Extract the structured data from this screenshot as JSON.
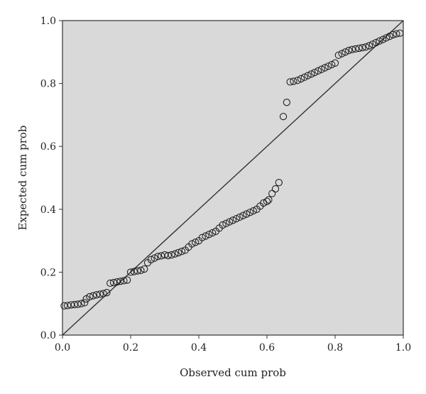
{
  "chart_data": {
    "type": "scatter",
    "title": "",
    "xlabel": "Observed cum prob",
    "ylabel": "Expected cum prob",
    "xlim": [
      0,
      1
    ],
    "ylim": [
      0,
      1
    ],
    "xticks": [
      "0.0",
      "0.2",
      "0.4",
      "0.6",
      "0.8",
      "1.0"
    ],
    "yticks": [
      "0.0",
      "0.2",
      "0.4",
      "0.6",
      "0.8",
      "1.0"
    ],
    "grid": false,
    "legend": "none",
    "plot_background": "#d9d9d9",
    "marker": "open-circle",
    "reference_line": {
      "x": [
        0,
        1
      ],
      "y": [
        0,
        1
      ]
    },
    "series": [
      {
        "values": [
          [
            0.005,
            0.093
          ],
          [
            0.015,
            0.094
          ],
          [
            0.025,
            0.096
          ],
          [
            0.035,
            0.097
          ],
          [
            0.045,
            0.098
          ],
          [
            0.055,
            0.1
          ],
          [
            0.065,
            0.103
          ],
          [
            0.07,
            0.115
          ],
          [
            0.08,
            0.122
          ],
          [
            0.09,
            0.125
          ],
          [
            0.1,
            0.128
          ],
          [
            0.11,
            0.13
          ],
          [
            0.12,
            0.132
          ],
          [
            0.13,
            0.135
          ],
          [
            0.14,
            0.165
          ],
          [
            0.15,
            0.167
          ],
          [
            0.16,
            0.169
          ],
          [
            0.17,
            0.171
          ],
          [
            0.18,
            0.173
          ],
          [
            0.19,
            0.175
          ],
          [
            0.2,
            0.2
          ],
          [
            0.21,
            0.202
          ],
          [
            0.22,
            0.204
          ],
          [
            0.23,
            0.206
          ],
          [
            0.24,
            0.21
          ],
          [
            0.25,
            0.23
          ],
          [
            0.26,
            0.24
          ],
          [
            0.27,
            0.245
          ],
          [
            0.28,
            0.25
          ],
          [
            0.29,
            0.252
          ],
          [
            0.3,
            0.255
          ],
          [
            0.31,
            0.253
          ],
          [
            0.32,
            0.255
          ],
          [
            0.33,
            0.258
          ],
          [
            0.34,
            0.262
          ],
          [
            0.35,
            0.266
          ],
          [
            0.36,
            0.27
          ],
          [
            0.37,
            0.28
          ],
          [
            0.38,
            0.29
          ],
          [
            0.39,
            0.295
          ],
          [
            0.4,
            0.3
          ],
          [
            0.41,
            0.31
          ],
          [
            0.42,
            0.315
          ],
          [
            0.43,
            0.32
          ],
          [
            0.44,
            0.325
          ],
          [
            0.45,
            0.33
          ],
          [
            0.46,
            0.34
          ],
          [
            0.47,
            0.35
          ],
          [
            0.48,
            0.355
          ],
          [
            0.49,
            0.36
          ],
          [
            0.5,
            0.365
          ],
          [
            0.51,
            0.37
          ],
          [
            0.52,
            0.375
          ],
          [
            0.53,
            0.38
          ],
          [
            0.54,
            0.385
          ],
          [
            0.55,
            0.39
          ],
          [
            0.56,
            0.395
          ],
          [
            0.57,
            0.4
          ],
          [
            0.58,
            0.41
          ],
          [
            0.59,
            0.42
          ],
          [
            0.6,
            0.425
          ],
          [
            0.605,
            0.43
          ],
          [
            0.615,
            0.45
          ],
          [
            0.625,
            0.465
          ],
          [
            0.635,
            0.485
          ],
          [
            0.648,
            0.695
          ],
          [
            0.658,
            0.74
          ],
          [
            0.668,
            0.805
          ],
          [
            0.678,
            0.807
          ],
          [
            0.69,
            0.81
          ],
          [
            0.7,
            0.815
          ],
          [
            0.71,
            0.82
          ],
          [
            0.72,
            0.825
          ],
          [
            0.73,
            0.83
          ],
          [
            0.74,
            0.835
          ],
          [
            0.75,
            0.84
          ],
          [
            0.76,
            0.845
          ],
          [
            0.77,
            0.85
          ],
          [
            0.78,
            0.855
          ],
          [
            0.79,
            0.86
          ],
          [
            0.8,
            0.865
          ],
          [
            0.81,
            0.89
          ],
          [
            0.82,
            0.895
          ],
          [
            0.83,
            0.9
          ],
          [
            0.84,
            0.905
          ],
          [
            0.85,
            0.908
          ],
          [
            0.86,
            0.91
          ],
          [
            0.87,
            0.912
          ],
          [
            0.88,
            0.914
          ],
          [
            0.89,
            0.916
          ],
          [
            0.9,
            0.92
          ],
          [
            0.91,
            0.925
          ],
          [
            0.92,
            0.93
          ],
          [
            0.93,
            0.935
          ],
          [
            0.94,
            0.94
          ],
          [
            0.95,
            0.945
          ],
          [
            0.96,
            0.95
          ],
          [
            0.97,
            0.955
          ],
          [
            0.98,
            0.958
          ],
          [
            0.99,
            0.96
          ]
        ]
      }
    ]
  }
}
